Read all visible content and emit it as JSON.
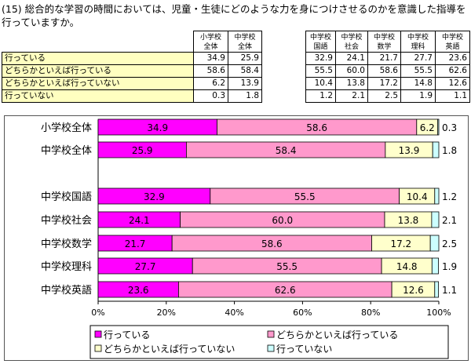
{
  "title": "(15) 総合的な学習の時間においては、児童・生徒にどのような力を身につけさせるのかを意識した指導を行っていますか。",
  "table": {
    "columns": [
      "小学校全体",
      "中学校全体",
      "中学校国語",
      "中学校社会",
      "中学校数学",
      "中学校理科",
      "中学校英語"
    ],
    "rows": [
      {
        "label": "行っている",
        "values": [
          "34.9",
          "25.9",
          "32.9",
          "24.1",
          "21.7",
          "27.7",
          "23.6"
        ]
      },
      {
        "label": "どちらかといえば行っている",
        "values": [
          "58.6",
          "58.4",
          "55.5",
          "60.0",
          "58.6",
          "55.5",
          "62.6"
        ]
      },
      {
        "label": "どちらかといえば行っていない",
        "values": [
          "6.2",
          "13.9",
          "10.4",
          "13.8",
          "17.2",
          "14.8",
          "12.6"
        ]
      },
      {
        "label": "行っていない",
        "values": [
          "0.3",
          "1.8",
          "1.2",
          "2.1",
          "2.5",
          "1.9",
          "1.1"
        ]
      }
    ]
  },
  "chart_data": {
    "type": "bar",
    "orientation": "horizontal",
    "stacked": true,
    "categories": [
      "小学校全体",
      "中学校全体",
      "中学校国語",
      "中学校社会",
      "中学校数学",
      "中学校理科",
      "中学校英語"
    ],
    "series": [
      {
        "name": "行っている",
        "values": [
          34.9,
          25.9,
          32.9,
          24.1,
          21.7,
          27.7,
          23.6
        ],
        "color": "#ff00ff"
      },
      {
        "name": "どちらかといえば行っている",
        "values": [
          58.6,
          58.4,
          55.5,
          60.0,
          58.6,
          55.5,
          62.6
        ],
        "color": "#ff99cc"
      },
      {
        "name": "どちらかといえば行っていない",
        "values": [
          6.2,
          13.9,
          10.4,
          13.8,
          17.2,
          14.8,
          12.6
        ],
        "color": "#ffffcc"
      },
      {
        "name": "行っていない",
        "values": [
          0.3,
          1.8,
          1.2,
          2.1,
          2.5,
          1.9,
          1.1
        ],
        "color": "#ccffff"
      }
    ],
    "value_labels": [
      [
        "34.9",
        "58.6",
        "6.2",
        "0.3"
      ],
      [
        "25.9",
        "58.4",
        "13.9",
        "1.8"
      ],
      [
        "32.9",
        "55.5",
        "10.4",
        "1.2"
      ],
      [
        "24.1",
        "60.0",
        "13.8",
        "2.1"
      ],
      [
        "21.7",
        "58.6",
        "17.2",
        "2.5"
      ],
      [
        "27.7",
        "55.5",
        "14.8",
        "1.9"
      ],
      [
        "23.6",
        "62.6",
        "12.6",
        "1.1"
      ]
    ],
    "x_ticks": [
      "0%",
      "20%",
      "40%",
      "60%",
      "80%",
      "100%"
    ],
    "xlim": [
      0,
      100
    ],
    "legend_position": "bottom"
  }
}
